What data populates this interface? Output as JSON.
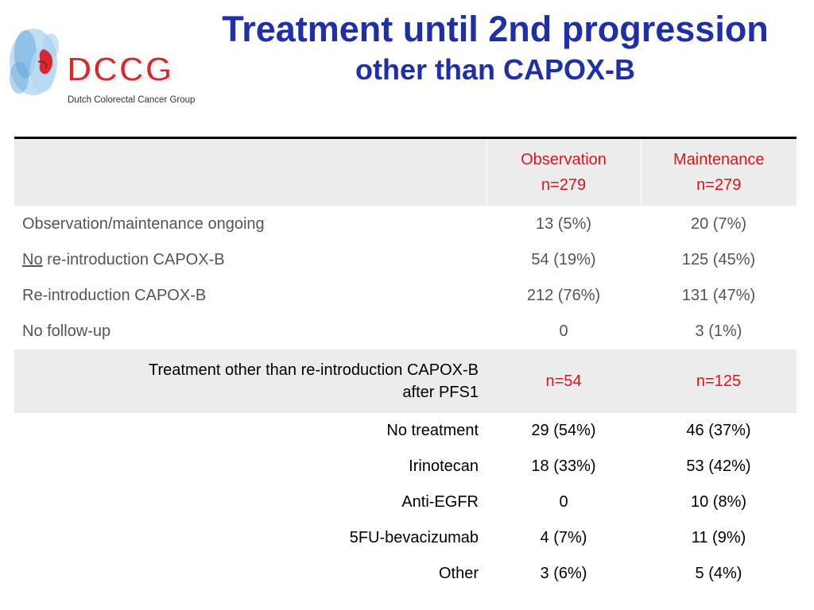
{
  "logo": {
    "word": "DCCG",
    "subtitle": "Dutch Colorectal Cancer Group"
  },
  "title": "Treatment until 2nd progression",
  "subtitle": "other than CAPOX-B",
  "table": {
    "columns": [
      {
        "name": "Observation",
        "n": "n=279"
      },
      {
        "name": "Maintenance",
        "n": "n=279"
      }
    ],
    "rows": [
      {
        "label": "Observation/maintenance ongoing",
        "obs": "13 (5%)",
        "maint": "20 (7%)"
      },
      {
        "label_underlined": "No",
        "label_rest": " re-introduction CAPOX-B",
        "obs": "54 (19%)",
        "maint": "125 (45%)"
      },
      {
        "label": "Re-introduction CAPOX-B",
        "obs": "212 (76%)",
        "maint": "131 (47%)"
      },
      {
        "label": "No follow-up",
        "obs": "0",
        "maint": "3 (1%)"
      }
    ],
    "band": {
      "label_line1": "Treatment other than re-introduction CAPOX-B",
      "label_line2": "after PFS1",
      "obs": "n=54",
      "maint": "n=125"
    },
    "subrows": [
      {
        "label": "No treatment",
        "obs": "29 (54%)",
        "maint": "46 (37%)"
      },
      {
        "label": "Irinotecan",
        "obs": "18 (33%)",
        "maint": "53 (42%)"
      },
      {
        "label": "Anti-EGFR",
        "obs": "0",
        "maint": "10 (8%)"
      },
      {
        "label": "5FU-bevacizumab",
        "obs": "4 (7%)",
        "maint": "11 (9%)"
      },
      {
        "label": "Other",
        "obs": "3 (6%)",
        "maint": "5 (4%)"
      }
    ]
  },
  "colors": {
    "title": "#1f2fa8",
    "accent_red": "#e0141c",
    "header_bg": "#ececec",
    "muted_text": "#555555"
  }
}
